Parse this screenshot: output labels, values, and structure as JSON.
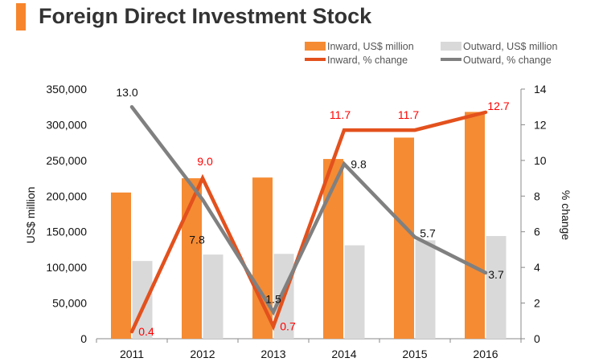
{
  "header": {
    "title": "Foreign Direct Investment Stock",
    "accent": "#f7852b"
  },
  "chart_data": {
    "type": "bar",
    "title": "Foreign Direct Investment Stock",
    "categories": [
      "2011",
      "2012",
      "2013",
      "2014",
      "2015",
      "2016"
    ],
    "series": [
      {
        "name": "Inward, US$ million",
        "kind": "bar",
        "axis": "left",
        "color": "#f58b33",
        "values": [
          205000,
          225000,
          226000,
          252000,
          282000,
          318000
        ]
      },
      {
        "name": "Outward, US$ million",
        "kind": "bar",
        "axis": "left",
        "color": "#d9d9d9",
        "values": [
          109000,
          118000,
          119000,
          131000,
          138000,
          144000
        ]
      },
      {
        "name": "Inward, % change",
        "kind": "line",
        "axis": "right",
        "color": "#e3511d",
        "values": [
          0.4,
          9.0,
          0.7,
          11.7,
          11.7,
          12.7
        ],
        "labels": [
          "0.4",
          "9.0",
          "0.7",
          "11.7",
          "11.7",
          "12.7"
        ],
        "label_color": "#ff0000"
      },
      {
        "name": "Outward, % change",
        "kind": "line",
        "axis": "right",
        "color": "#808080",
        "values": [
          13.0,
          7.8,
          1.5,
          9.8,
          5.7,
          3.7
        ],
        "labels": [
          "13.0",
          "7.8",
          "1.5",
          "9.8",
          "5.7",
          "3.7"
        ],
        "label_color": "#111111"
      }
    ],
    "ylabel": "US$ million",
    "ylim": [
      0,
      350000
    ],
    "yticks": [
      0,
      50000,
      100000,
      150000,
      200000,
      250000,
      300000,
      350000
    ],
    "ytick_labels": [
      "0",
      "50,000",
      "100,000",
      "150,000",
      "200,000",
      "250,000",
      "300,000",
      "350,000"
    ],
    "y2label": "% change",
    "y2lim": [
      0,
      14
    ],
    "y2ticks": [
      0,
      2,
      4,
      6,
      8,
      10,
      12,
      14
    ],
    "y2tick_labels": [
      "0",
      "2",
      "4",
      "6",
      "8",
      "10",
      "12",
      "14"
    ],
    "legend": "top-right",
    "grid": false
  }
}
